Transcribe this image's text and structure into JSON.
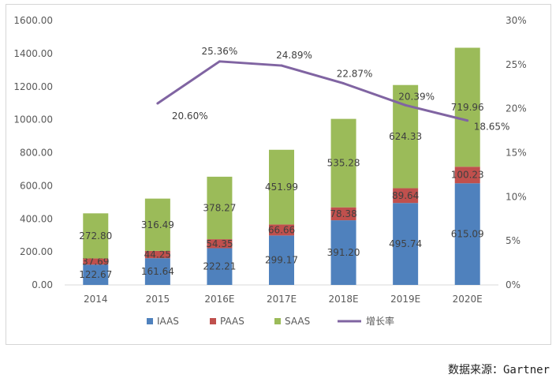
{
  "chart_data": {
    "type": "bar",
    "stacked": true,
    "categories": [
      "2014",
      "2015",
      "2016E",
      "2017E",
      "2018E",
      "2019E",
      "2020E"
    ],
    "series": [
      {
        "name": "IAAS",
        "values": [
          122.67,
          161.64,
          222.21,
          299.17,
          391.2,
          495.74,
          615.09
        ],
        "labels": [
          "122.67",
          "161.64",
          "222.21",
          "299.17",
          "391.20",
          "495.74",
          "615.09"
        ],
        "color": "#4f81bd"
      },
      {
        "name": "PAAS",
        "values": [
          37.69,
          44.25,
          54.35,
          66.66,
          78.38,
          89.64,
          100.23
        ],
        "labels": [
          "37.69",
          "44.25",
          "54.35",
          "66.66",
          "78.38",
          "89.64",
          "100.23"
        ],
        "color": "#c0504d"
      },
      {
        "name": "SAAS",
        "values": [
          272.8,
          316.49,
          378.27,
          451.99,
          535.28,
          624.33,
          719.96
        ],
        "labels": [
          "272.80",
          "316.49",
          "378.27",
          "451.99",
          "535.28",
          "624.33",
          "719.96"
        ],
        "color": "#9bbb59"
      }
    ],
    "line_series": {
      "name": "增长率",
      "axis": "right",
      "color": "#8064a2",
      "values": [
        null,
        20.6,
        25.36,
        24.89,
        22.87,
        20.39,
        18.65
      ],
      "labels": [
        "",
        "20.60%",
        "25.36%",
        "24.89%",
        "22.87%",
        "20.39%",
        "18.65%"
      ]
    },
    "y_left": {
      "ylim": [
        0,
        1600
      ],
      "ticks": [
        "0.00",
        "200.00",
        "400.00",
        "600.00",
        "800.00",
        "1000.00",
        "1200.00",
        "1400.00",
        "1600.00"
      ]
    },
    "y_right": {
      "ylim": [
        0,
        30
      ],
      "ticks": [
        "0%",
        "5%",
        "10%",
        "15%",
        "20%",
        "25%",
        "30%"
      ]
    },
    "grid": false,
    "legend": {
      "position": "bottom",
      "entries": [
        "IAAS",
        "PAAS",
        "SAAS",
        "增长率"
      ]
    }
  },
  "source_note": "数据来源：Gartner"
}
